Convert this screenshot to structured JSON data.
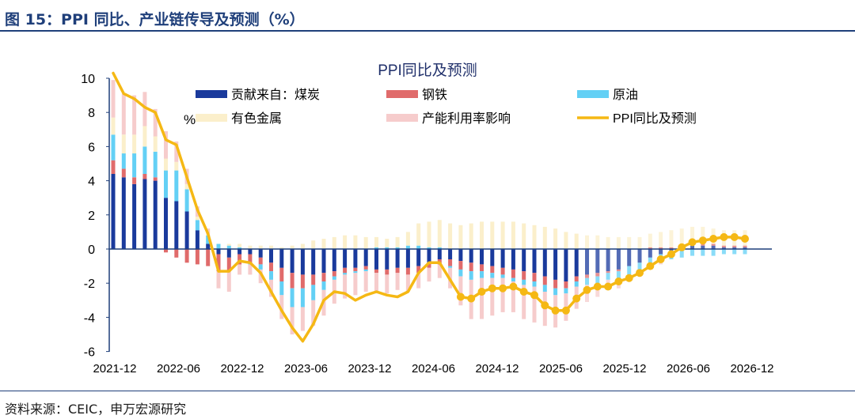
{
  "figure": {
    "title": "图 15：PPI 同比、产业链传导及预测（%）",
    "source": "资料来源：CEIC，申万宏源研究"
  },
  "colors": {
    "coal": "#1a3a9c",
    "steel": "#e06b6b",
    "oil": "#63d0f5",
    "metals": "#fbefcb",
    "capacity": "#f6cccc",
    "ppi": "#f5b814",
    "axis": "#1f3f7a"
  },
  "chart_data": {
    "type": "bar",
    "title": "PPI同比及预测",
    "ylabel": "%",
    "xlabel": "",
    "ylim": [
      -6,
      10
    ],
    "yticks": [
      -6,
      -4,
      -2,
      0,
      2,
      4,
      6,
      8,
      10
    ],
    "grid": false,
    "stacked": true,
    "legend_position": "top",
    "x_tick_labels": [
      "2021-12",
      "2022-06",
      "2022-12",
      "2023-06",
      "2023-12",
      "2024-06",
      "2024-12",
      "2025-06",
      "2025-12",
      "2026-06",
      "2026-12"
    ],
    "categories": [
      "2021-12",
      "2022-01",
      "2022-02",
      "2022-03",
      "2022-04",
      "2022-05",
      "2022-06",
      "2022-07",
      "2022-08",
      "2022-09",
      "2022-10",
      "2022-11",
      "2022-12",
      "2023-01",
      "2023-02",
      "2023-03",
      "2023-04",
      "2023-05",
      "2023-06",
      "2023-07",
      "2023-08",
      "2023-09",
      "2023-10",
      "2023-11",
      "2023-12",
      "2024-01",
      "2024-02",
      "2024-03",
      "2024-04",
      "2024-05",
      "2024-06",
      "2024-07",
      "2024-08",
      "2024-09",
      "2024-10",
      "2024-11",
      "2024-12",
      "2025-01",
      "2025-02",
      "2025-03",
      "2025-04",
      "2025-05",
      "2025-06",
      "2025-07",
      "2025-08",
      "2025-09",
      "2025-10",
      "2025-11",
      "2025-12",
      "2026-01",
      "2026-02",
      "2026-03",
      "2026-04",
      "2026-05",
      "2026-06",
      "2026-07",
      "2026-08",
      "2026-09",
      "2026-10",
      "2026-11",
      "2026-12"
    ],
    "forecast_start_index": 45,
    "series": [
      {
        "name": "贡献来自：煤炭",
        "type": "bar",
        "color_key": "coal",
        "values": [
          4.4,
          4.2,
          3.8,
          4.1,
          4.0,
          3.0,
          2.8,
          2.2,
          1.1,
          0.3,
          -0.3,
          -0.5,
          -0.3,
          -0.3,
          -0.5,
          -0.8,
          -1.1,
          -1.4,
          -1.5,
          -1.5,
          -1.4,
          -1.3,
          -1.1,
          -1.1,
          -1.0,
          -1.2,
          -1.2,
          -1.1,
          -1.1,
          -1.0,
          -0.8,
          -0.6,
          -0.6,
          -0.7,
          -0.8,
          -0.9,
          -1.0,
          -1.1,
          -1.2,
          -1.3,
          -1.4,
          -1.6,
          -1.8,
          -1.9,
          -1.6,
          -1.5,
          -1.4,
          -1.3,
          -1.2,
          -1.0,
          -0.8,
          -0.5,
          -0.3,
          -0.1,
          0.1,
          0.2,
          0.2,
          0.2,
          0.1,
          0.1,
          0.1
        ]
      },
      {
        "name": "钢铁",
        "type": "bar",
        "color_key": "steel",
        "values": [
          0.8,
          0.5,
          0.4,
          0.3,
          0.2,
          -0.2,
          -0.5,
          -0.8,
          -0.9,
          -1.0,
          -1.0,
          -0.8,
          -0.6,
          -0.5,
          -0.4,
          -0.5,
          -0.8,
          -0.9,
          -0.8,
          -0.6,
          -0.5,
          -0.3,
          -0.3,
          -0.2,
          -0.2,
          -0.2,
          -0.3,
          -0.3,
          -0.4,
          -0.4,
          -0.3,
          -0.3,
          -0.4,
          -0.5,
          -0.5,
          -0.4,
          -0.4,
          -0.4,
          -0.5,
          -0.5,
          -0.5,
          -0.5,
          -0.5,
          -0.4,
          -0.3,
          -0.2,
          -0.2,
          -0.1,
          -0.1,
          0.0,
          0.0,
          0.1,
          0.1,
          0.1,
          0.1,
          0.1,
          0.1,
          0.1,
          0.1,
          0.1,
          0.1
        ]
      },
      {
        "name": "原油",
        "type": "bar",
        "color_key": "oil",
        "values": [
          1.5,
          0.9,
          1.4,
          1.6,
          1.5,
          1.6,
          1.8,
          1.3,
          0.6,
          0.5,
          0.3,
          0.2,
          0.1,
          -0.1,
          -0.3,
          -0.5,
          -0.8,
          -1.1,
          -1.1,
          -0.9,
          -0.5,
          -0.2,
          -0.1,
          -0.1,
          -0.1,
          0.1,
          0.1,
          0.1,
          0.2,
          0.2,
          0.1,
          0.1,
          -0.1,
          -0.4,
          -0.5,
          -0.4,
          -0.3,
          -0.2,
          -0.2,
          -0.3,
          -0.3,
          -0.4,
          -0.4,
          -0.3,
          -0.3,
          -0.4,
          -0.4,
          -0.4,
          -0.5,
          -0.5,
          -0.5,
          -0.5,
          -0.5,
          -0.5,
          -0.5,
          -0.4,
          -0.4,
          -0.4,
          -0.3,
          -0.3,
          -0.3
        ]
      },
      {
        "name": "有色金属",
        "type": "bar",
        "color_key": "metals",
        "values": [
          1.0,
          1.1,
          1.1,
          1.2,
          0.9,
          0.7,
          0.5,
          0.3,
          0.2,
          0.1,
          0.0,
          0.1,
          0.2,
          0.2,
          0.2,
          0.2,
          0.1,
          0.2,
          0.3,
          0.5,
          0.6,
          0.7,
          0.8,
          0.8,
          0.7,
          0.6,
          0.5,
          0.6,
          0.8,
          1.3,
          1.5,
          1.6,
          1.5,
          1.4,
          1.5,
          1.6,
          1.6,
          1.6,
          1.6,
          1.5,
          1.4,
          1.3,
          1.2,
          1.0,
          0.9,
          0.8,
          0.8,
          0.7,
          0.7,
          0.7,
          0.7,
          0.8,
          0.9,
          1.0,
          1.0,
          1.0,
          1.0,
          0.9,
          0.9,
          0.9,
          0.9
        ]
      },
      {
        "name": "产能利用率影响",
        "type": "bar",
        "color_key": "capacity",
        "values": [
          2.2,
          2.4,
          2.3,
          2.0,
          1.6,
          1.6,
          1.2,
          0.9,
          0.6,
          0.3,
          -1.0,
          -1.2,
          -0.6,
          -0.6,
          -0.8,
          -1.0,
          -1.4,
          -1.6,
          -1.4,
          -1.5,
          -1.5,
          -1.4,
          -1.4,
          -1.3,
          -1.2,
          -1.2,
          -1.1,
          -1.0,
          -1.0,
          -0.9,
          -0.8,
          -0.8,
          -1.2,
          -1.7,
          -2.3,
          -2.4,
          -2.2,
          -2.0,
          -1.8,
          -2.0,
          -2.1,
          -2.0,
          -1.9,
          -1.6,
          -1.3,
          -1.0,
          -0.8,
          -0.6,
          -0.5,
          -0.4,
          -0.3,
          -0.2,
          -0.1,
          0.0,
          0.0,
          0.0,
          0.0,
          0.0,
          0.0,
          0.0,
          0.0
        ]
      },
      {
        "name": "PPI同比及预测",
        "type": "line",
        "color_key": "ppi",
        "values": [
          10.3,
          9.1,
          8.8,
          8.3,
          8.0,
          6.4,
          6.1,
          4.2,
          2.3,
          0.9,
          -1.3,
          -1.3,
          -0.7,
          -0.8,
          -1.4,
          -2.5,
          -3.6,
          -4.6,
          -5.4,
          -4.4,
          -3.0,
          -2.5,
          -2.6,
          -3.0,
          -2.7,
          -2.5,
          -2.7,
          -2.8,
          -2.5,
          -1.4,
          -0.8,
          -0.8,
          -1.8,
          -2.8,
          -2.9,
          -2.5,
          -2.3,
          -2.3,
          -2.2,
          -2.5,
          -2.7,
          -3.3,
          -3.6,
          -3.6,
          -2.9,
          -2.4,
          -2.2,
          -2.2,
          -1.9,
          -1.7,
          -1.4,
          -1.0,
          -0.6,
          -0.3,
          0.1,
          0.4,
          0.5,
          0.6,
          0.7,
          0.7,
          0.6
        ]
      }
    ]
  }
}
